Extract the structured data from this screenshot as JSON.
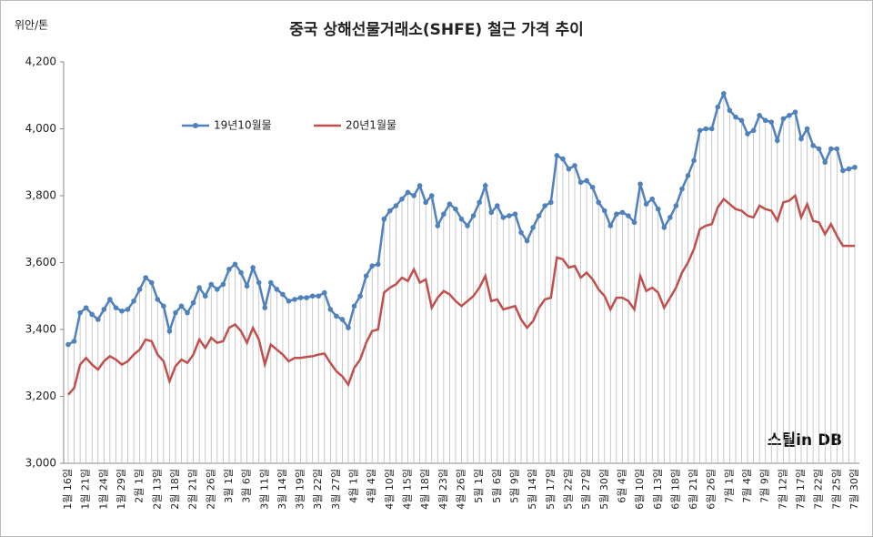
{
  "chart_data": {
    "type": "line",
    "title": "중국 상해선물거래소(SHFE) 철근 가격 추이",
    "y_label": "위안/톤",
    "watermark": "스틸in DB",
    "categories": [
      "1월 16일",
      null,
      null,
      "1월 21일",
      null,
      null,
      "1월 24일",
      null,
      null,
      "1월 29일",
      null,
      null,
      "2월 1일",
      null,
      null,
      "2월 13일",
      null,
      null,
      "2월 18일",
      null,
      null,
      "2월 21일",
      null,
      null,
      "2월 26일",
      null,
      null,
      "3월 1일",
      null,
      null,
      "3월 6일",
      null,
      null,
      "3월 11일",
      null,
      null,
      "3월 14일",
      null,
      null,
      "3월 19일",
      null,
      null,
      "3월 22일",
      null,
      null,
      "3월 27일",
      null,
      null,
      "4월 1일",
      null,
      null,
      "4월 4일",
      null,
      null,
      "4월 10일",
      null,
      null,
      "4월 15일",
      null,
      null,
      "4월 18일",
      null,
      null,
      "4월 23일",
      null,
      null,
      "4월 26일",
      null,
      null,
      "5월 1일",
      null,
      null,
      "5월 6일",
      null,
      null,
      "5월 9일",
      null,
      null,
      "5월 14일",
      null,
      null,
      "5월 17일",
      null,
      null,
      "5월 22일",
      null,
      null,
      "5월 27일",
      null,
      null,
      "5월 30일",
      null,
      null,
      "6월 4일",
      null,
      null,
      "6월 10일",
      null,
      null,
      "6월 13일",
      null,
      null,
      "6월 18일",
      null,
      null,
      "6월 21일",
      null,
      null,
      "6월 26일",
      null,
      null,
      "7월 1일",
      null,
      null,
      "7월 4일",
      null,
      null,
      "7월 9일",
      null,
      null,
      "7월 12일",
      null,
      null,
      "7월 17일",
      null,
      null,
      "7월 22일",
      null,
      null,
      "7월 25일",
      null,
      null,
      "7월 30일"
    ],
    "series": [
      {
        "name": "19년10월물",
        "color": "#4f81bd",
        "marker": true,
        "values": [
          3355,
          3365,
          3450,
          3465,
          3445,
          3430,
          3460,
          3490,
          3465,
          3455,
          3460,
          3485,
          3520,
          3555,
          3540,
          3490,
          3470,
          3395,
          3450,
          3470,
          3450,
          3480,
          3525,
          3500,
          3535,
          3520,
          3535,
          3580,
          3595,
          3570,
          3530,
          3585,
          3540,
          3465,
          3540,
          3520,
          3505,
          3485,
          3490,
          3495,
          3495,
          3500,
          3500,
          3510,
          3460,
          3440,
          3430,
          3405,
          3470,
          3500,
          3560,
          3590,
          3595,
          3730,
          3755,
          3770,
          3790,
          3810,
          3800,
          3830,
          3780,
          3800,
          3710,
          3745,
          3775,
          3760,
          3730,
          3710,
          3740,
          3780,
          3830,
          3750,
          3770,
          3735,
          3740,
          3745,
          3690,
          3665,
          3705,
          3740,
          3770,
          3780,
          3920,
          3910,
          3880,
          3890,
          3840,
          3845,
          3825,
          3780,
          3755,
          3710,
          3745,
          3750,
          3740,
          3720,
          3835,
          3775,
          3790,
          3760,
          3705,
          3735,
          3770,
          3820,
          3860,
          3905,
          3995,
          4000,
          4000,
          4065,
          4105,
          4055,
          4035,
          4025,
          3985,
          3995,
          4040,
          4025,
          4020,
          3965,
          4030,
          4040,
          4050,
          3970,
          4000,
          3950,
          3940,
          3900,
          3940,
          3940,
          3875,
          3880,
          3885
        ]
      },
      {
        "name": "20년1월물",
        "color": "#c0504d",
        "marker": false,
        "values": [
          3205,
          3225,
          3295,
          3315,
          3295,
          3280,
          3305,
          3320,
          3310,
          3295,
          3305,
          3325,
          3340,
          3370,
          3365,
          3325,
          3305,
          3245,
          3290,
          3310,
          3300,
          3325,
          3370,
          3345,
          3375,
          3360,
          3365,
          3405,
          3415,
          3395,
          3360,
          3405,
          3370,
          3295,
          3355,
          3340,
          3325,
          3305,
          3315,
          3315,
          3318,
          3320,
          3325,
          3328,
          3300,
          3275,
          3260,
          3235,
          3285,
          3310,
          3360,
          3395,
          3400,
          3510,
          3525,
          3535,
          3555,
          3545,
          3580,
          3540,
          3550,
          3465,
          3495,
          3515,
          3505,
          3485,
          3470,
          3485,
          3500,
          3525,
          3560,
          3485,
          3490,
          3460,
          3465,
          3470,
          3430,
          3405,
          3425,
          3465,
          3490,
          3495,
          3615,
          3610,
          3585,
          3590,
          3555,
          3570,
          3550,
          3520,
          3500,
          3460,
          3495,
          3495,
          3485,
          3460,
          3560,
          3515,
          3525,
          3510,
          3465,
          3495,
          3525,
          3570,
          3600,
          3640,
          3700,
          3710,
          3715,
          3765,
          3790,
          3775,
          3760,
          3755,
          3740,
          3735,
          3770,
          3760,
          3755,
          3725,
          3780,
          3785,
          3800,
          3735,
          3775,
          3725,
          3720,
          3685,
          3715,
          3680,
          3650,
          3650,
          3650
        ]
      }
    ],
    "ylim": [
      3000,
      4200
    ],
    "yticks": [
      {
        "value": 3000,
        "label": "3,000"
      },
      {
        "value": 3200,
        "label": "3,200"
      },
      {
        "value": 3400,
        "label": "3,400"
      },
      {
        "value": 3600,
        "label": "3,600"
      },
      {
        "value": 3800,
        "label": "3,800"
      },
      {
        "value": 4000,
        "label": "4,000"
      },
      {
        "value": 4200,
        "label": "4,200"
      }
    ],
    "drop_lines": true,
    "grid": false
  }
}
